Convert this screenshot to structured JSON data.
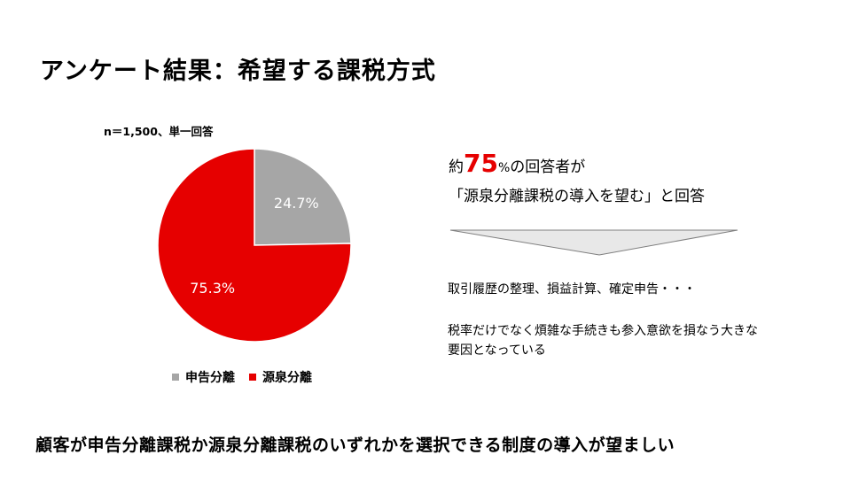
{
  "title": "アンケート結果：希望する課税方式",
  "sample_note": "n＝1,500、単一回答",
  "summary": {
    "prefix": "約",
    "big_value": "75",
    "unit": "%",
    "suffix": "の回答者が",
    "line2": "「源泉分離課税の導入を望む」と回答"
  },
  "factors": {
    "line1": "取引履歴の整理、損益計算、確定申告・・・",
    "line2": "税率だけでなく煩雑な手続きも参入意欲を損なう大きな要因となっている"
  },
  "conclusion": "顧客が申告分離課税か源泉分離課税のいずれかを選択できる制度の導入が望ましい",
  "chart_data": {
    "type": "pie",
    "slices": [
      {
        "name": "申告分離",
        "value": 24.7,
        "label": "24.7%",
        "color": "#a6a6a6"
      },
      {
        "name": "源泉分離",
        "value": 75.3,
        "label": "75.3%",
        "color": "#e60000"
      }
    ],
    "start": "12 o'clock",
    "direction": "clockwise",
    "legend_position": "bottom"
  }
}
